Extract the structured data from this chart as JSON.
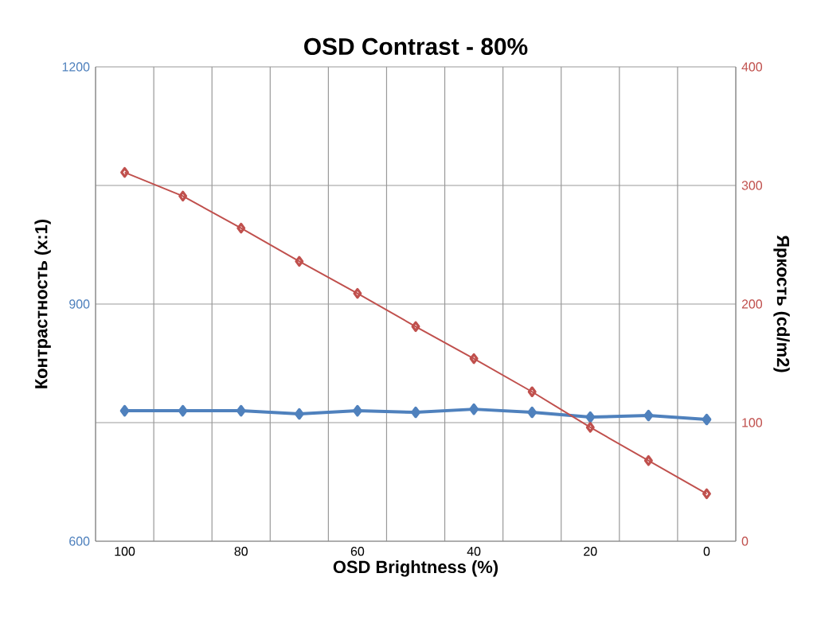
{
  "chart_data": {
    "type": "line",
    "title": "OSD Contrast - 80%",
    "xlabel": "OSD Brightness (%)",
    "ylabel": "Контрастность (x:1)",
    "y2label": "Яркость (cd/m2)",
    "categories": [
      "100",
      null,
      "80",
      null,
      "60",
      null,
      "40",
      null,
      "20",
      null,
      "0"
    ],
    "series": [
      {
        "color": "#4f81bd",
        "marker": "diamond",
        "values": [
          765,
          765,
          765,
          761,
          765,
          763,
          767,
          763,
          757,
          759,
          754
        ]
      },
      {
        "color": "#c0504d",
        "marker": "diamond",
        "axis": "y2",
        "values": [
          311,
          291,
          264,
          236,
          209,
          181,
          154,
          126,
          96,
          68,
          40
        ]
      }
    ],
    "ylim": [
      600,
      1200
    ],
    "yticks": [
      600,
      {
        "value": 750,
        "label": null
      },
      900,
      {
        "value": 1050,
        "label": null
      },
      1200
    ],
    "y2lim": [
      0,
      400
    ],
    "y2ticks": [
      0,
      100,
      200,
      300,
      400
    ],
    "grid": true
  }
}
